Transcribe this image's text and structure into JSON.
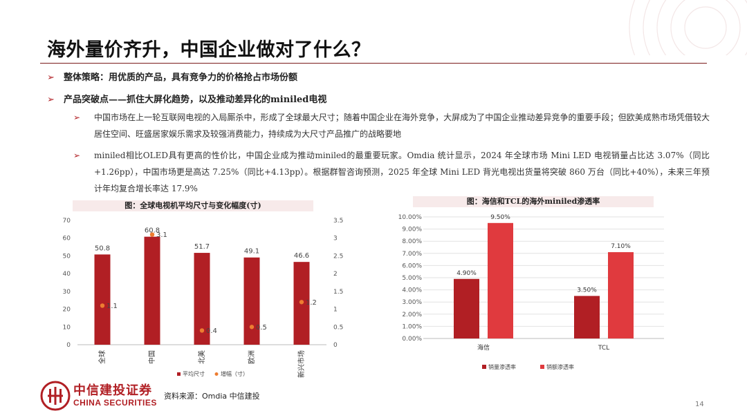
{
  "slide": {
    "title": "海外量价齐升，中国企业做对了什么？",
    "bullets": [
      {
        "text": "整体策略：用优质的产品，具有竞争力的价格抢占市场份额"
      },
      {
        "text": "产品突破点——抓住大屏化趋势，以及推动差异化的miniled电视"
      }
    ],
    "subbullets": [
      {
        "text": "中国市场在上一轮互联网电视的入局厮杀中，形成了全球最大尺寸；随着中国企业在海外竞争，大屏成为了中国企业推动差异竞争的重要手段；但欧美成熟市场凭借较大居住空间、旺盛居家娱乐需求及较强消费能力，持续成为大尺寸产品推广的战略要地"
      },
      {
        "text": "miniled相比OLED具有更高的性价比，中国企业成为推动miniled的最重要玩家。Omdia 统计显示，2024 年全球市场 Mini LED 电视销量占比达 3.07%（同比+1.26pp），中国市场更是高达 7.25%（同比+4.13pp）。根据群智咨询预测，2025 年全球 Mini LED 背光电视出货量将突破 860 万台（同比+40%），未来三年预计年均复合增长率达 17.9%"
      }
    ],
    "source": "资料来源：Omdia 中信建投",
    "page_number": "14",
    "brand_cn": "中信建投证券",
    "brand_en": "CHINA SECURITIES",
    "colors": {
      "accent": "#b11f24",
      "bar_red": "#b11f24",
      "bar_light": "#e03a3e",
      "dot_orange": "#ed7d31"
    }
  },
  "chart_data": [
    {
      "type": "bar",
      "title": "图：全球电视机平均尺寸与变化幅度(寸)",
      "categories": [
        "全球",
        "中国",
        "北美",
        "欧洲",
        "新兴市场"
      ],
      "series": [
        {
          "name": "平均尺寸",
          "type": "bar",
          "axis": "left",
          "values": [
            50.8,
            60.8,
            51.7,
            49.1,
            46.6
          ]
        },
        {
          "name": "增幅（寸）",
          "type": "scatter",
          "axis": "right",
          "values": [
            1.1,
            3.1,
            0.4,
            0.5,
            1.2
          ]
        }
      ],
      "ylim_left": [
        0,
        70
      ],
      "yticks_left": [
        "0",
        "10",
        "20",
        "30",
        "40",
        "50",
        "60",
        "70"
      ],
      "ylim_right": [
        0,
        3.5
      ],
      "yticks_right": [
        "0",
        "0.5",
        "1",
        "1.5",
        "2",
        "2.5",
        "3",
        "3.5"
      ],
      "grid": false,
      "legend": "bottom"
    },
    {
      "type": "bar",
      "title": "图：海信和TCL的海外miniled渗透率",
      "categories": [
        "海信",
        "TCL"
      ],
      "series": [
        {
          "name": "销量渗透率",
          "values": [
            4.9,
            3.5
          ],
          "labels": [
            "4.90%",
            "3.50%"
          ]
        },
        {
          "name": "销额渗透率",
          "values": [
            9.5,
            7.1
          ],
          "labels": [
            "9.50%",
            "7.10%"
          ]
        }
      ],
      "ylim": [
        0,
        10
      ],
      "yticks": [
        "0.00%",
        "1.00%",
        "2.00%",
        "3.00%",
        "4.00%",
        "5.00%",
        "6.00%",
        "7.00%",
        "8.00%",
        "9.00%",
        "10.00%"
      ],
      "grid": true,
      "legend": "bottom"
    }
  ]
}
